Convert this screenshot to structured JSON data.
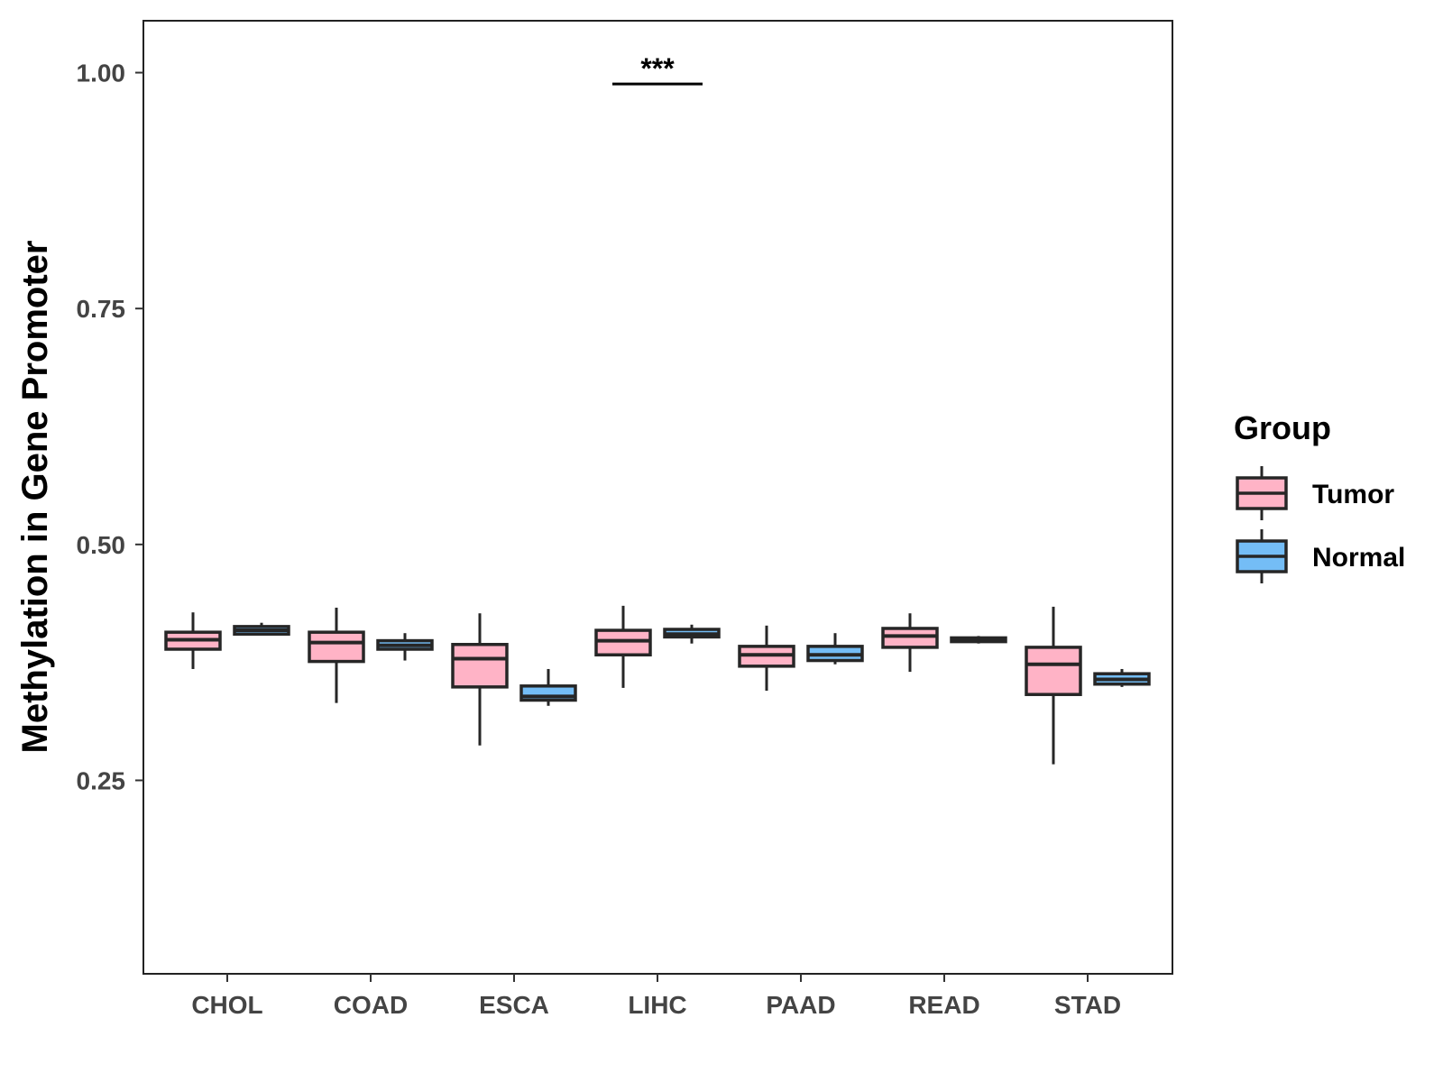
{
  "chart_data": {
    "type": "boxplot",
    "title": "",
    "xlabel": "",
    "ylabel": "Methylation in Gene Promoter",
    "ylim": [
      0.045,
      1.055
    ],
    "yticks": [
      0.25,
      0.5,
      0.75,
      1.0
    ],
    "ytick_labels": [
      "0.25",
      "0.50",
      "0.75",
      "1.00"
    ],
    "categories": [
      "CHOL",
      "COAD",
      "ESCA",
      "LIHC",
      "PAAD",
      "READ",
      "STAD"
    ],
    "legend": {
      "title": "Group",
      "position": "right",
      "entries": [
        {
          "name": "Tumor",
          "color": "#FFB3C6"
        },
        {
          "name": "Normal",
          "color": "#74BDF6"
        }
      ]
    },
    "series": [
      {
        "name": "Tumor",
        "color": "#FFB3C6",
        "boxes": [
          {
            "category": "CHOL",
            "whisker_low": 0.368,
            "q1": 0.389,
            "median": 0.399,
            "q3": 0.407,
            "whisker_high": 0.428
          },
          {
            "category": "COAD",
            "whisker_low": 0.332,
            "q1": 0.376,
            "median": 0.396,
            "q3": 0.407,
            "whisker_high": 0.433
          },
          {
            "category": "ESCA",
            "whisker_low": 0.287,
            "q1": 0.349,
            "median": 0.379,
            "q3": 0.394,
            "whisker_high": 0.427
          },
          {
            "category": "LIHC",
            "whisker_low": 0.348,
            "q1": 0.383,
            "median": 0.398,
            "q3": 0.409,
            "whisker_high": 0.435
          },
          {
            "category": "PAAD",
            "whisker_low": 0.345,
            "q1": 0.371,
            "median": 0.383,
            "q3": 0.392,
            "whisker_high": 0.414
          },
          {
            "category": "READ",
            "whisker_low": 0.365,
            "q1": 0.391,
            "median": 0.403,
            "q3": 0.411,
            "whisker_high": 0.427
          },
          {
            "category": "STAD",
            "whisker_low": 0.267,
            "q1": 0.341,
            "median": 0.373,
            "q3": 0.391,
            "whisker_high": 0.434
          }
        ]
      },
      {
        "name": "Normal",
        "color": "#74BDF6",
        "boxes": [
          {
            "category": "CHOL",
            "whisker_low": 0.405,
            "q1": 0.405,
            "median": 0.409,
            "q3": 0.413,
            "whisker_high": 0.417
          },
          {
            "category": "COAD",
            "whisker_low": 0.377,
            "q1": 0.389,
            "median": 0.393,
            "q3": 0.398,
            "whisker_high": 0.406
          },
          {
            "category": "ESCA",
            "whisker_low": 0.329,
            "q1": 0.335,
            "median": 0.339,
            "q3": 0.35,
            "whisker_high": 0.368
          },
          {
            "category": "LIHC",
            "whisker_low": 0.395,
            "q1": 0.402,
            "median": 0.405,
            "q3": 0.41,
            "whisker_high": 0.415
          },
          {
            "category": "PAAD",
            "whisker_low": 0.373,
            "q1": 0.377,
            "median": 0.383,
            "q3": 0.392,
            "whisker_high": 0.406
          },
          {
            "category": "READ",
            "whisker_low": 0.395,
            "q1": 0.397,
            "median": 0.4,
            "q3": 0.401,
            "whisker_high": 0.403
          },
          {
            "category": "STAD",
            "whisker_low": 0.349,
            "q1": 0.352,
            "median": 0.357,
            "q3": 0.363,
            "whisker_high": 0.368
          }
        ]
      }
    ],
    "annotations": [
      {
        "category": "LIHC",
        "text": "***",
        "y": 0.988
      }
    ]
  }
}
